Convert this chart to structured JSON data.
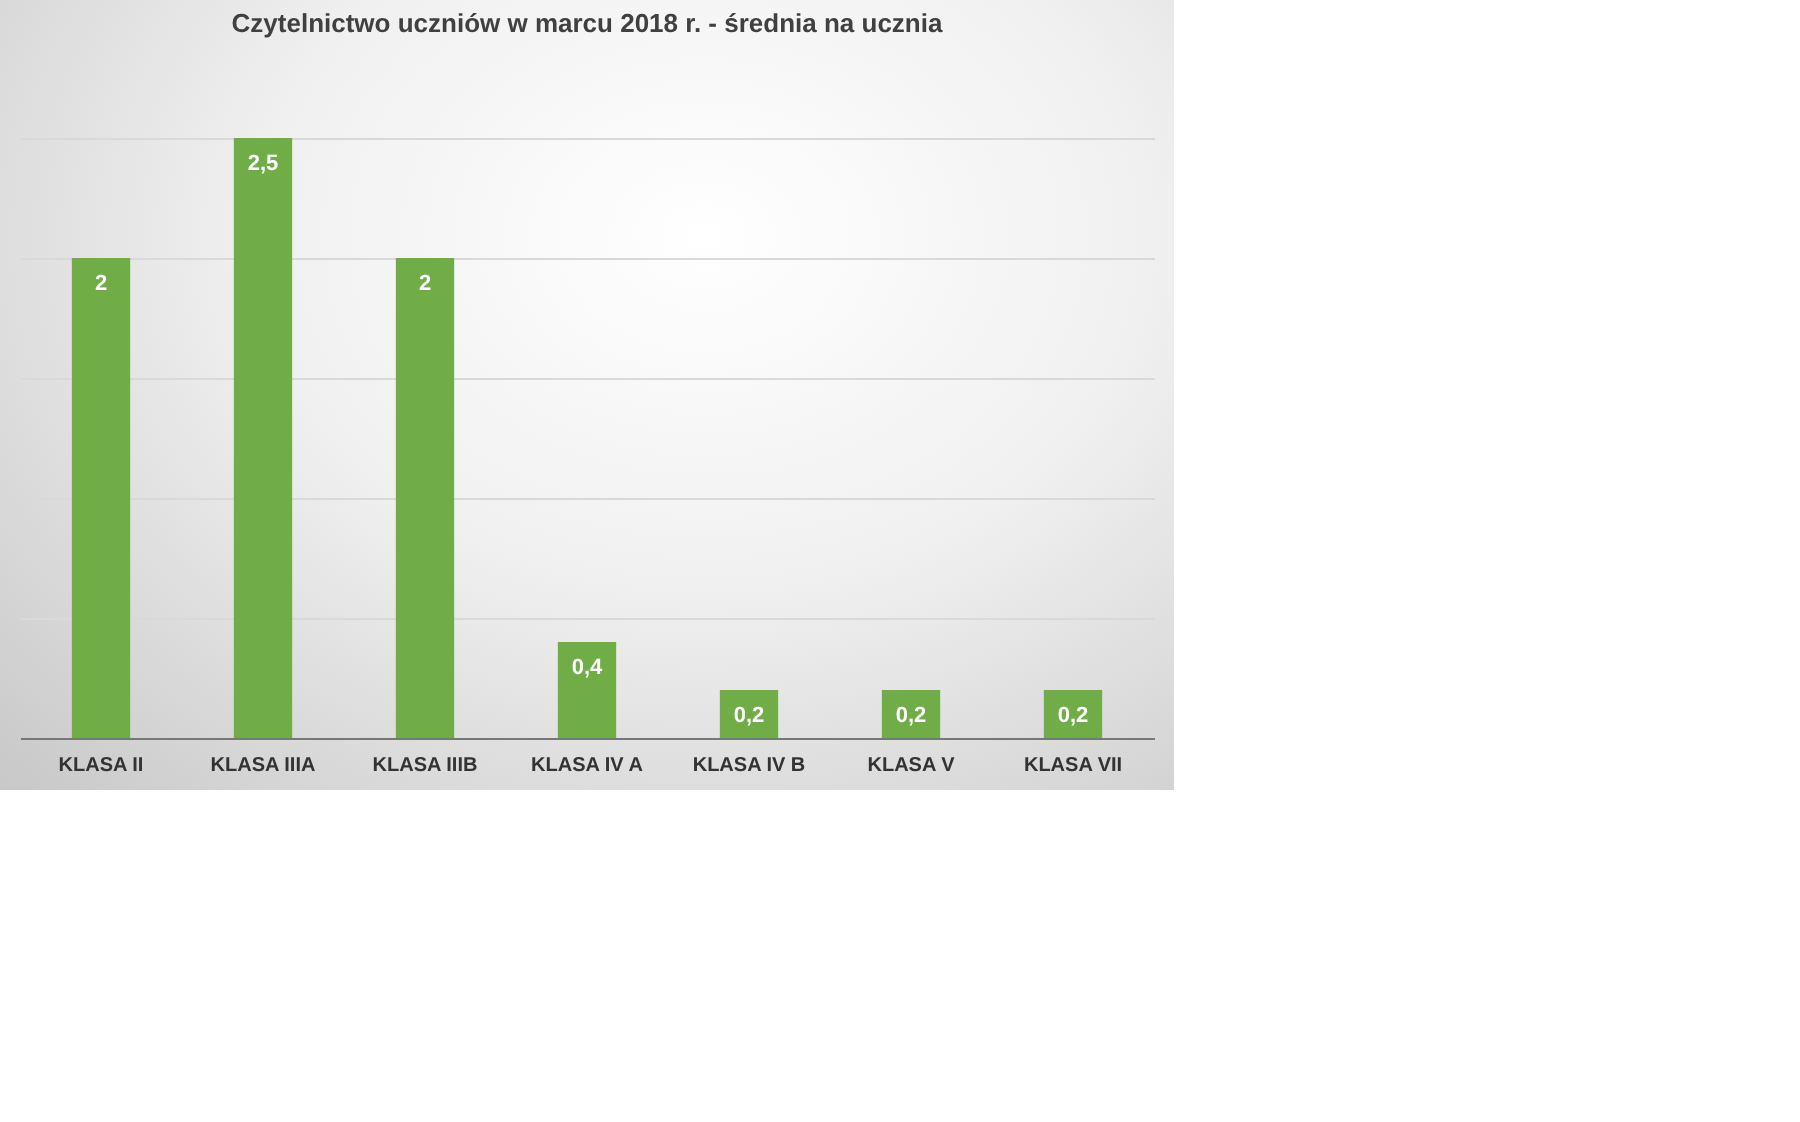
{
  "chart_data": {
    "type": "bar",
    "title": "Czytelnictwo uczniów w marcu 2018 r. - średnia na ucznia",
    "categories": [
      "KLASA II",
      "KLASA IIIA",
      "KLASA IIIB",
      "KLASA IV A",
      "KLASA IV B",
      "KLASA V",
      "KLASA VII"
    ],
    "values": [
      2,
      2.5,
      2,
      0.4,
      0.2,
      0.2,
      0.2
    ],
    "value_labels": [
      "2",
      "2,5",
      "2",
      "0,4",
      "0,2",
      "0,2",
      "0,2"
    ],
    "color": "#70ad47",
    "ylim": [
      0,
      2.5
    ],
    "yticks": [
      {
        "value": 0,
        "label": null
      },
      {
        "value": 0.5,
        "label": null
      },
      {
        "value": 1,
        "label": null
      },
      {
        "value": 1.5,
        "label": null
      },
      {
        "value": 2,
        "label": null
      },
      {
        "value": 2.5,
        "label": null
      }
    ],
    "grid": "y",
    "tick_labels": "x"
  }
}
